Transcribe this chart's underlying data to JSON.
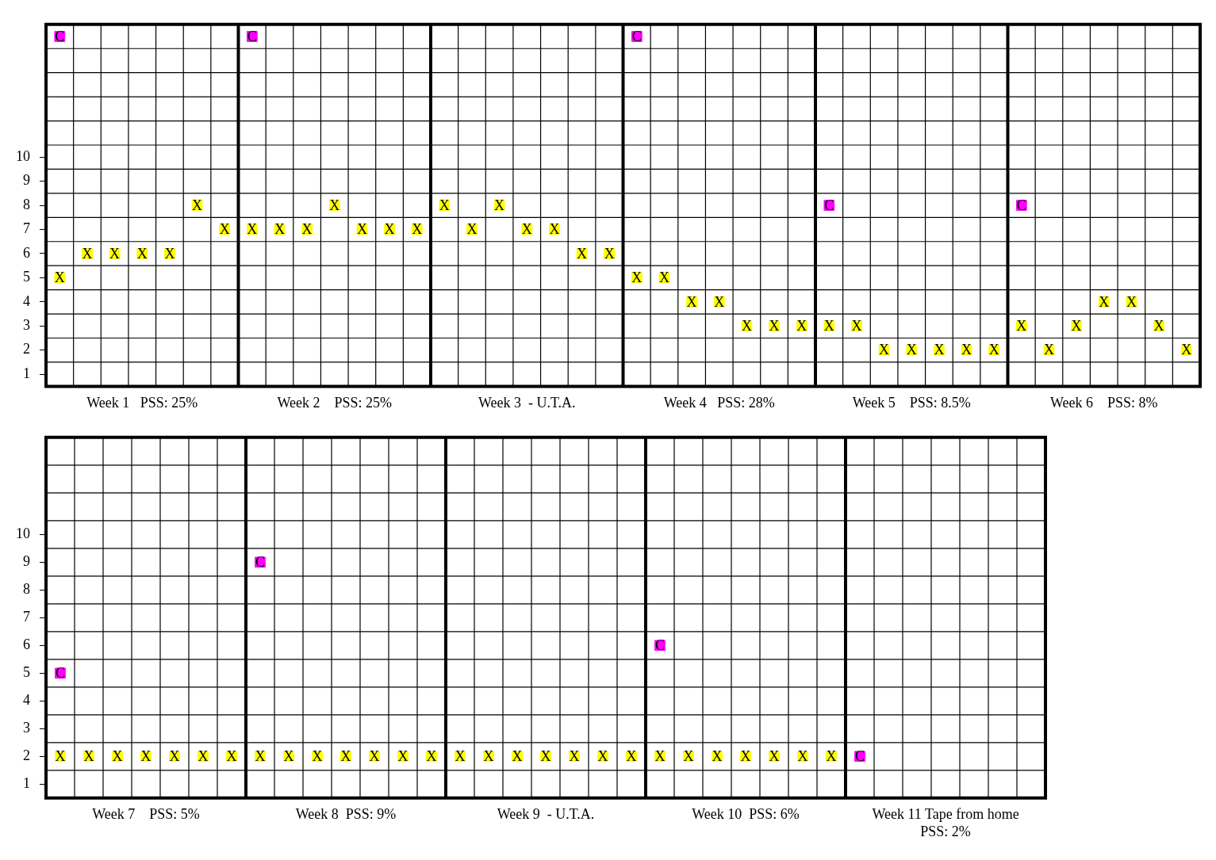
{
  "chart_data": [
    {
      "type": "scatter",
      "marker": "square",
      "grid": true,
      "legend": false,
      "categories": [
        null,
        null,
        null,
        "Week 1   PSS: 25%",
        null,
        null,
        null,
        null,
        null,
        null,
        "Week 2    PSS: 25%",
        null,
        null,
        null,
        null,
        null,
        null,
        "Week 3  - U.T.A.",
        null,
        null,
        null,
        null,
        null,
        null,
        "Week 4   PSS: 28%",
        null,
        null,
        null,
        null,
        null,
        null,
        "Week 5    PSS: 8.5%",
        null,
        null,
        null,
        null,
        null,
        null,
        "Week 6    PSS: 8%",
        null,
        null,
        null
      ],
      "ylim": [
        0.5,
        15.5
      ],
      "yticks": [
        1,
        2,
        3,
        4,
        5,
        6,
        7,
        8,
        9,
        10
      ],
      "series": [
        {
          "name": "X",
          "color": "#ffff00",
          "values": [
            5,
            6,
            6,
            6,
            6,
            8,
            7,
            7,
            7,
            7,
            8,
            7,
            7,
            7,
            8,
            7,
            8,
            7,
            7,
            6,
            6,
            5,
            5,
            4,
            4,
            3,
            3,
            3,
            3,
            3,
            2,
            2,
            2,
            2,
            2,
            3,
            2,
            3,
            4,
            4,
            3,
            2
          ]
        },
        {
          "name": "C",
          "color": "#ff00ff",
          "values": [
            15,
            null,
            null,
            null,
            null,
            null,
            null,
            15,
            null,
            null,
            null,
            null,
            null,
            null,
            null,
            null,
            null,
            null,
            null,
            null,
            null,
            15,
            null,
            null,
            null,
            null,
            null,
            null,
            8,
            null,
            null,
            null,
            null,
            null,
            null,
            8,
            null,
            null,
            null,
            null,
            null,
            null
          ]
        }
      ]
    },
    {
      "type": "scatter",
      "marker": "square",
      "grid": true,
      "legend": false,
      "categories": [
        null,
        null,
        null,
        "Week 7    PSS: 5%",
        null,
        null,
        null,
        null,
        null,
        null,
        "Week 8  PSS: 9%",
        null,
        null,
        null,
        null,
        null,
        null,
        "Week 9  - U.T.A.",
        null,
        null,
        null,
        null,
        null,
        null,
        "Week 10  PSS: 6%",
        null,
        null,
        null,
        null,
        null,
        null,
        "Week 11  Tape from home PSS: 2%",
        null,
        null,
        null
      ],
      "ylim": [
        0.5,
        13.5
      ],
      "yticks": [
        1,
        2,
        3,
        4,
        5,
        6,
        7,
        8,
        9,
        10
      ],
      "series": [
        {
          "name": "X",
          "color": "#ffff00",
          "values": [
            2,
            2,
            2,
            2,
            2,
            2,
            2,
            2,
            2,
            2,
            2,
            2,
            2,
            2,
            2,
            2,
            2,
            2,
            2,
            2,
            2,
            2,
            2,
            2,
            2,
            2,
            2,
            2,
            null,
            null,
            null,
            null,
            null,
            null,
            null
          ]
        },
        {
          "name": "C",
          "color": "#ff00ff",
          "values": [
            5,
            null,
            null,
            null,
            null,
            null,
            null,
            9,
            null,
            null,
            null,
            null,
            null,
            null,
            null,
            null,
            null,
            null,
            null,
            null,
            null,
            6,
            null,
            null,
            null,
            null,
            null,
            null,
            2,
            null,
            null,
            null,
            null,
            null,
            null
          ]
        }
      ]
    }
  ]
}
